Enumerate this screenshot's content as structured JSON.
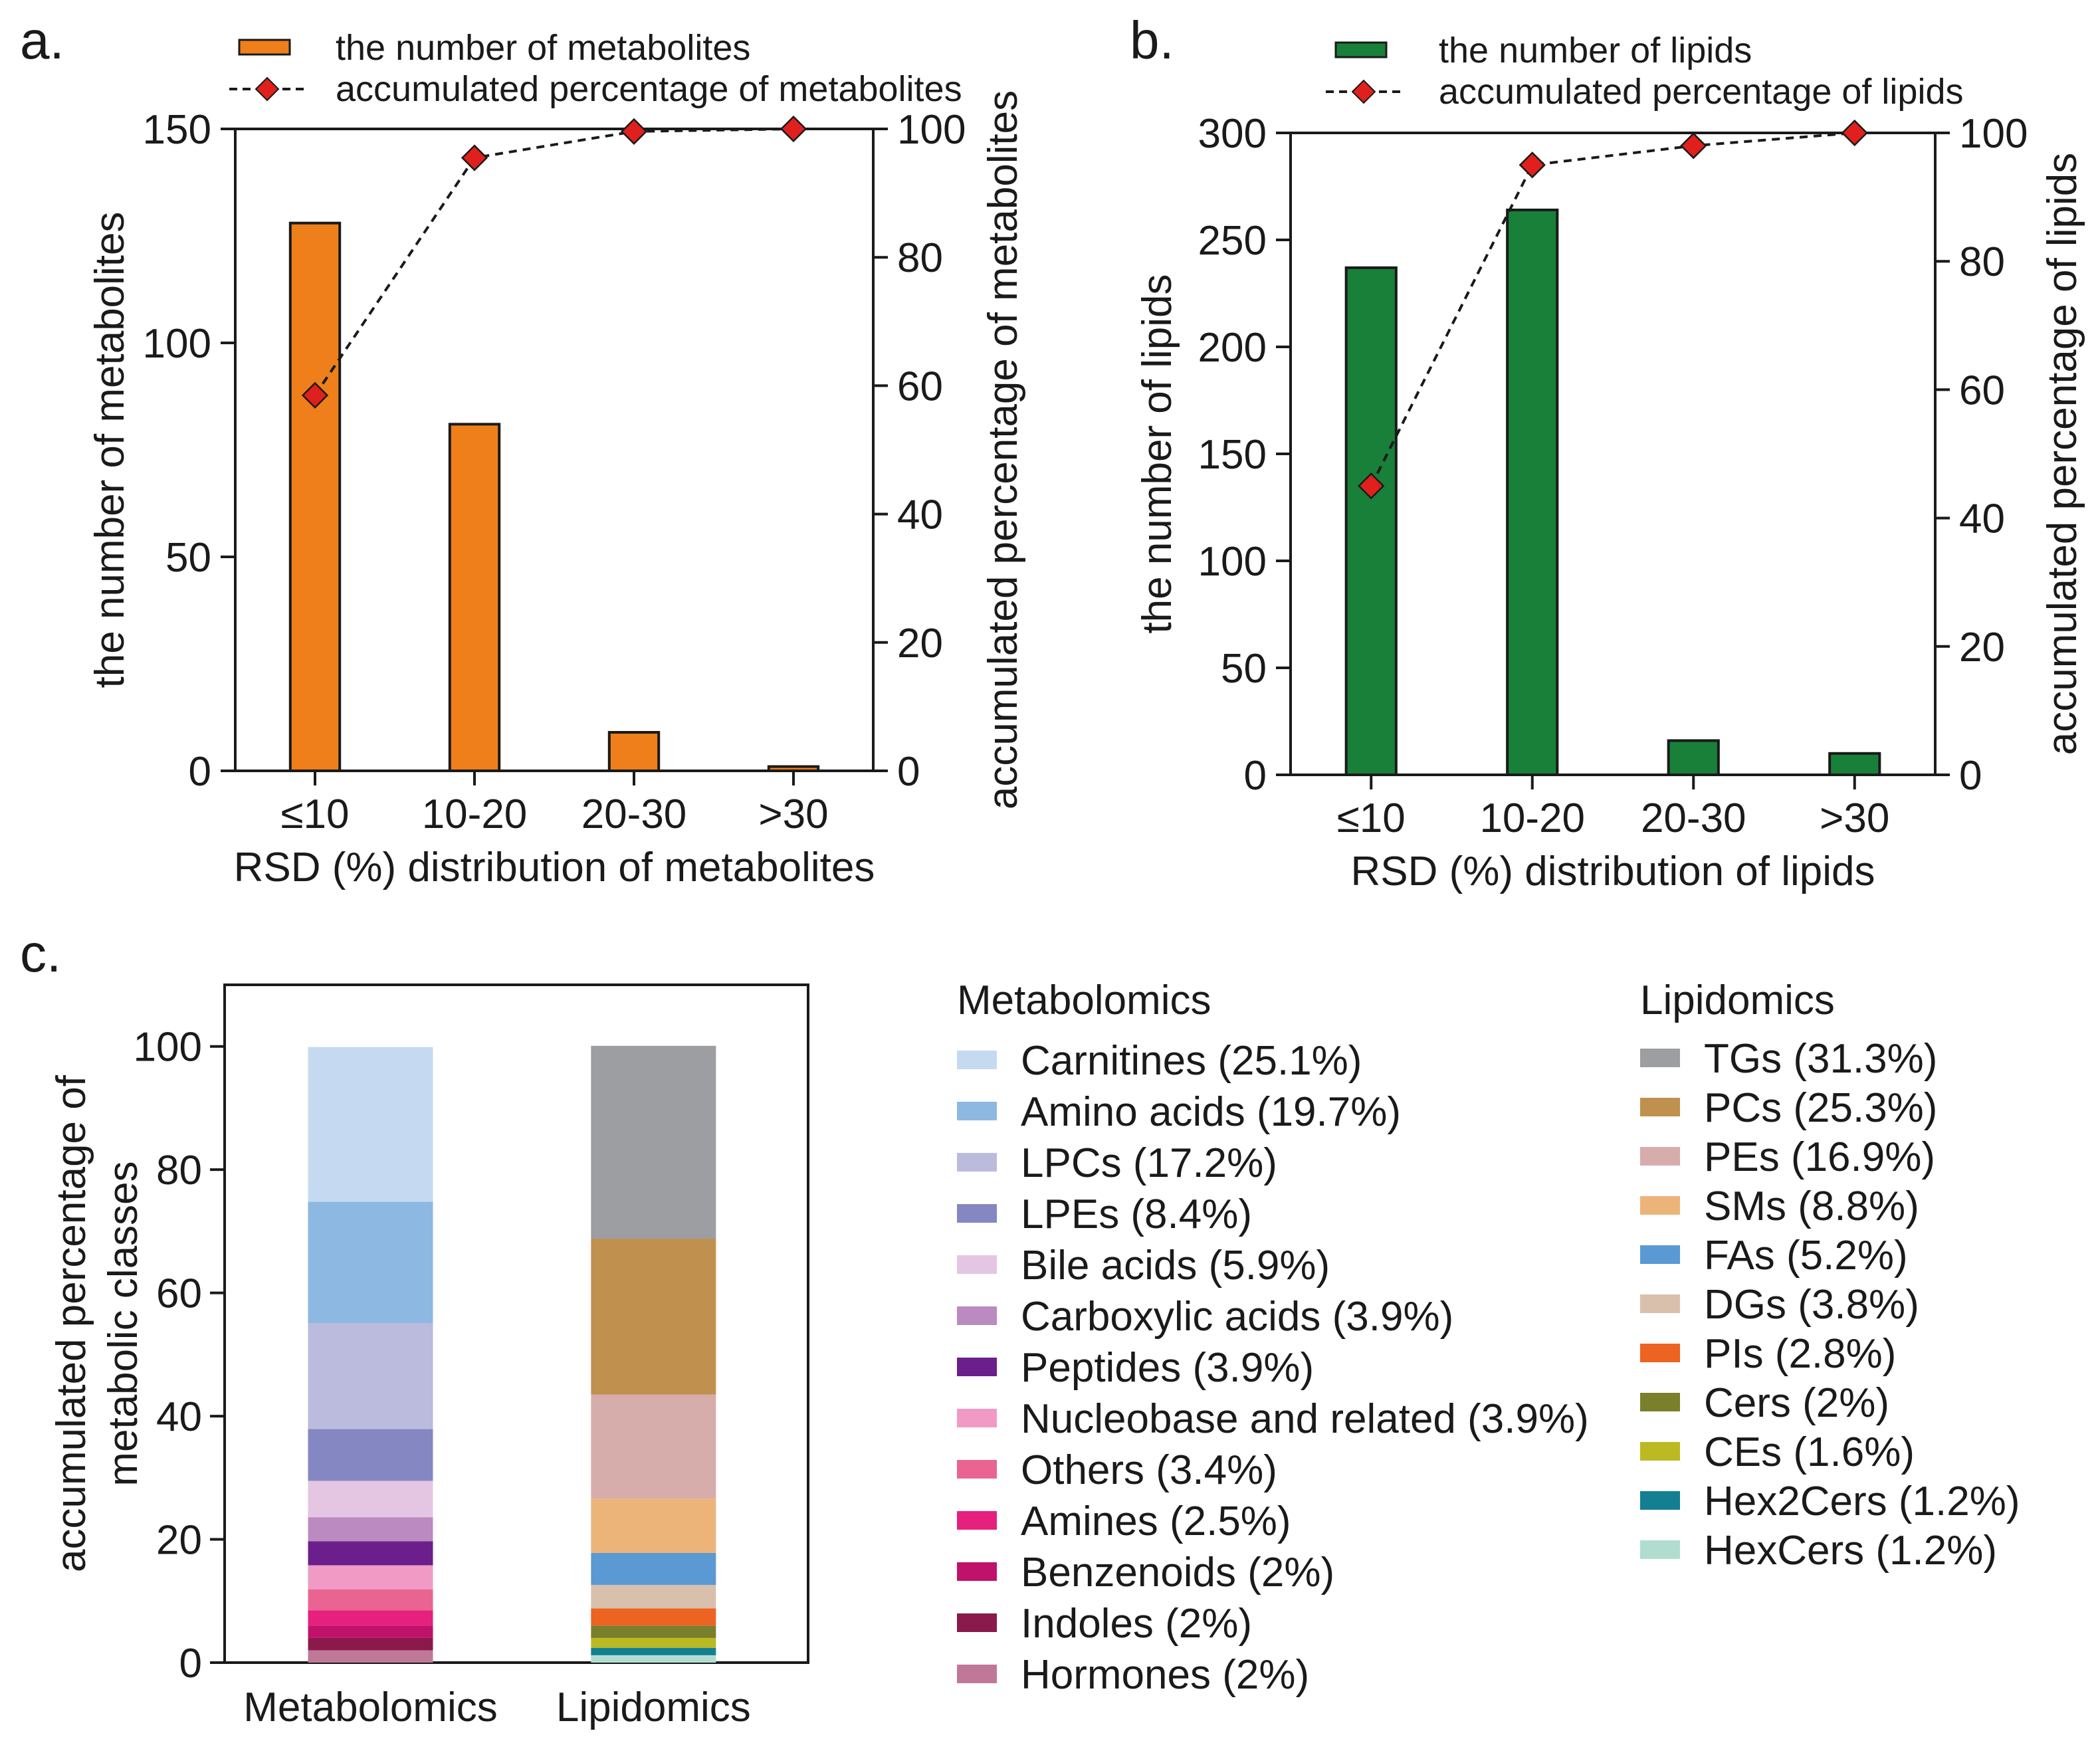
{
  "panels": {
    "a": {
      "label": "a."
    },
    "b": {
      "label": "b."
    },
    "c": {
      "label": "c."
    }
  },
  "colors": {
    "orange": "#ef7f1a",
    "green": "#188038",
    "marker": "#e0201c",
    "axis": "#1a1a1a"
  },
  "chart_data": [
    {
      "type": "bar",
      "panel": "a",
      "categories": [
        "≤10",
        "10-20",
        "20-30",
        ">30"
      ],
      "series": [
        {
          "name": "the number of metabolites",
          "values": [
            128,
            81,
            9,
            1
          ],
          "axis": "left",
          "color": "#ef7f1a"
        },
        {
          "name": "accumulated percentage of metabolites",
          "values": [
            58.5,
            95.5,
            99.6,
            100
          ],
          "axis": "right",
          "style": "dashed line with diamond markers"
        }
      ],
      "xlabel": "RSD (%) distribution of metabolites",
      "ylabel": "the number of metabolites",
      "ylabel_right": "accumulated percentage of metabolites",
      "ylim": [
        0,
        150
      ],
      "yticks": [
        "0",
        "50",
        "100",
        "150"
      ],
      "ylim_right": [
        0,
        100
      ],
      "yticks_right": [
        "0",
        "20",
        "40",
        "60",
        "80",
        "100"
      ],
      "legend": [
        "the number of metabolites",
        "accumulated percentage of metabolites"
      ]
    },
    {
      "type": "bar",
      "panel": "b",
      "categories": [
        "≤10",
        "10-20",
        "20-30",
        ">30"
      ],
      "series": [
        {
          "name": "the number of lipids",
          "values": [
            237,
            264,
            16,
            10
          ],
          "axis": "left",
          "color": "#188038"
        },
        {
          "name": "accumulated percentage of lipids",
          "values": [
            45,
            95,
            98,
            100
          ],
          "axis": "right",
          "style": "dashed line with diamond markers"
        }
      ],
      "xlabel": "RSD (%) distribution of lipids",
      "ylabel": "the number of lipids",
      "ylabel_right": "accumulated percentage of lipids",
      "ylim": [
        0,
        300
      ],
      "yticks": [
        "0",
        "50",
        "100",
        "150",
        "200",
        "250",
        "300"
      ],
      "ylim_right": [
        0,
        100
      ],
      "yticks_right": [
        "0",
        "20",
        "40",
        "60",
        "80",
        "100"
      ],
      "legend": [
        "the number of lipids",
        "accumulated percentage of lipids"
      ]
    },
    {
      "type": "bar",
      "panel": "c",
      "stacked": true,
      "categories": [
        "Metabolomics",
        "Lipidomics"
      ],
      "ylabel": "accumulated percentage of metabolic classes",
      "ylabel_lines": [
        "accumulated percentage of",
        "metabolic classes"
      ],
      "ylim": [
        0,
        110
      ],
      "yticks": [
        "0",
        "20",
        "40",
        "60",
        "80",
        "100"
      ],
      "stacks": [
        {
          "category": "Metabolomics",
          "legend_title": "Metabolomics",
          "segments": [
            {
              "name": "Carnitines",
              "value": 25.1,
              "label": "Carnitines (25.1%)",
              "color": "#c5daf0"
            },
            {
              "name": "Amino acids",
              "value": 19.7,
              "label": "Amino acids (19.7%)",
              "color": "#8db8e2"
            },
            {
              "name": "LPCs",
              "value": 17.2,
              "label": "LPCs (17.2%)",
              "color": "#bbbbdd"
            },
            {
              "name": "LPEs",
              "value": 8.4,
              "label": "LPEs (8.4%)",
              "color": "#8587c2"
            },
            {
              "name": "Bile acids",
              "value": 5.9,
              "label": "Bile acids (5.9%)",
              "color": "#e4c6e2"
            },
            {
              "name": "Carboxylic acids",
              "value": 3.9,
              "label": "Carboxylic acids (3.9%)",
              "color": "#bb8ac0"
            },
            {
              "name": "Peptides",
              "value": 3.9,
              "label": "Peptides (3.9%)",
              "color": "#6b1f8c"
            },
            {
              "name": "Nucleobase and related",
              "value": 3.9,
              "label": "Nucleobase and related (3.9%)",
              "color": "#f19ac5"
            },
            {
              "name": "Others",
              "value": 3.4,
              "label": "Others (3.4%)",
              "color": "#ea6492"
            },
            {
              "name": "Amines",
              "value": 2.5,
              "label": "Amines (2.5%)",
              "color": "#e6207d"
            },
            {
              "name": "Benzenoids",
              "value": 2.0,
              "label": "Benzenoids (2%)",
              "color": "#c0126a"
            },
            {
              "name": "Indoles",
              "value": 2.0,
              "label": "Indoles (2%)",
              "color": "#8a1a4c"
            },
            {
              "name": "Hormones",
              "value": 2.0,
              "label": "Hormones (2%)",
              "color": "#c07898"
            }
          ]
        },
        {
          "category": "Lipidomics",
          "legend_title": "Lipidomics",
          "segments": [
            {
              "name": "TGs",
              "value": 31.3,
              "label": "TGs (31.3%)",
              "color": "#9d9ea2"
            },
            {
              "name": "PCs",
              "value": 25.3,
              "label": "PCs (25.3%)",
              "color": "#c0904e"
            },
            {
              "name": "PEs",
              "value": 16.9,
              "label": "PEs (16.9%)",
              "color": "#d6adab"
            },
            {
              "name": "SMs",
              "value": 8.8,
              "label": "SMs (8.8%)",
              "color": "#edb47a"
            },
            {
              "name": "FAs",
              "value": 5.2,
              "label": "FAs (5.2%)",
              "color": "#5a99d4"
            },
            {
              "name": "DGs",
              "value": 3.8,
              "label": "DGs (3.8%)",
              "color": "#d8c0ad"
            },
            {
              "name": "PIs",
              "value": 2.8,
              "label": "PIs (2.8%)",
              "color": "#ed6322"
            },
            {
              "name": "Cers",
              "value": 2.0,
              "label": "Cers (2%)",
              "color": "#7a7f2c"
            },
            {
              "name": "CEs",
              "value": 1.6,
              "label": "CEs (1.6%)",
              "color": "#bcba21"
            },
            {
              "name": "Hex2Cers",
              "value": 1.2,
              "label": "Hex2Cers (1.2%)",
              "color": "#137f92"
            },
            {
              "name": "HexCers",
              "value": 1.2,
              "label": "HexCers (1.2%)",
              "color": "#b1ddd0"
            }
          ]
        }
      ]
    }
  ]
}
